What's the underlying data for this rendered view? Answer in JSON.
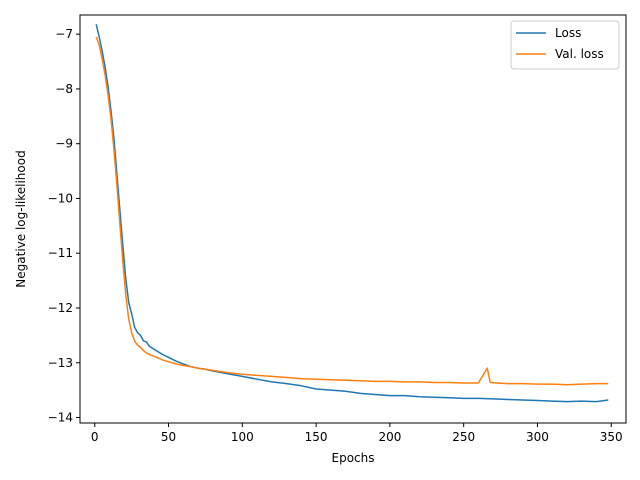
{
  "chart_data": {
    "type": "line",
    "title": "",
    "xlabel": "Epochs",
    "ylabel": "Negative log-likelihood",
    "xlim": [
      -10,
      360
    ],
    "ylim": [
      -14.1,
      -6.65
    ],
    "xticks": [
      0,
      50,
      100,
      150,
      200,
      250,
      300,
      350
    ],
    "yticks": [
      -14,
      -13,
      -12,
      -11,
      -10,
      -9,
      -8,
      -7
    ],
    "xtick_labels": [
      "0",
      "50",
      "100",
      "150",
      "200",
      "250",
      "300",
      "350"
    ],
    "ytick_labels": [
      "−14",
      "−13",
      "−12",
      "−11",
      "−10",
      "−9",
      "−8",
      "−7"
    ],
    "grid": false,
    "legend": "top-right",
    "series": [
      {
        "name": "Loss",
        "color": "#1f77b4",
        "points": [
          [
            1,
            -6.82
          ],
          [
            3,
            -7.05
          ],
          [
            5,
            -7.3
          ],
          [
            7,
            -7.6
          ],
          [
            9,
            -7.95
          ],
          [
            11,
            -8.4
          ],
          [
            13,
            -8.9
          ],
          [
            15,
            -9.55
          ],
          [
            17,
            -10.2
          ],
          [
            19,
            -10.85
          ],
          [
            21,
            -11.45
          ],
          [
            23,
            -11.9
          ],
          [
            25,
            -12.1
          ],
          [
            27,
            -12.35
          ],
          [
            29,
            -12.45
          ],
          [
            31,
            -12.5
          ],
          [
            33,
            -12.6
          ],
          [
            35,
            -12.62
          ],
          [
            37,
            -12.7
          ],
          [
            40,
            -12.75
          ],
          [
            43,
            -12.8
          ],
          [
            46,
            -12.85
          ],
          [
            50,
            -12.9
          ],
          [
            55,
            -12.97
          ],
          [
            60,
            -13.02
          ],
          [
            65,
            -13.07
          ],
          [
            70,
            -13.1
          ],
          [
            75,
            -13.12
          ],
          [
            80,
            -13.15
          ],
          [
            90,
            -13.2
          ],
          [
            100,
            -13.25
          ],
          [
            110,
            -13.3
          ],
          [
            120,
            -13.35
          ],
          [
            130,
            -13.38
          ],
          [
            140,
            -13.42
          ],
          [
            150,
            -13.48
          ],
          [
            160,
            -13.5
          ],
          [
            170,
            -13.52
          ],
          [
            180,
            -13.56
          ],
          [
            190,
            -13.58
          ],
          [
            200,
            -13.6
          ],
          [
            210,
            -13.6
          ],
          [
            220,
            -13.62
          ],
          [
            230,
            -13.63
          ],
          [
            240,
            -13.64
          ],
          [
            250,
            -13.65
          ],
          [
            260,
            -13.65
          ],
          [
            270,
            -13.66
          ],
          [
            280,
            -13.67
          ],
          [
            290,
            -13.68
          ],
          [
            300,
            -13.69
          ],
          [
            310,
            -13.7
          ],
          [
            320,
            -13.71
          ],
          [
            330,
            -13.7
          ],
          [
            340,
            -13.71
          ],
          [
            348,
            -13.68
          ]
        ]
      },
      {
        "name": "Val. loss",
        "color": "#ff7f0e",
        "points": [
          [
            1,
            -7.05
          ],
          [
            3,
            -7.2
          ],
          [
            5,
            -7.45
          ],
          [
            7,
            -7.75
          ],
          [
            9,
            -8.1
          ],
          [
            11,
            -8.55
          ],
          [
            13,
            -9.1
          ],
          [
            15,
            -9.75
          ],
          [
            17,
            -10.45
          ],
          [
            19,
            -11.15
          ],
          [
            21,
            -11.75
          ],
          [
            23,
            -12.2
          ],
          [
            25,
            -12.45
          ],
          [
            27,
            -12.6
          ],
          [
            29,
            -12.68
          ],
          [
            31,
            -12.72
          ],
          [
            33,
            -12.78
          ],
          [
            35,
            -12.82
          ],
          [
            38,
            -12.86
          ],
          [
            42,
            -12.9
          ],
          [
            46,
            -12.95
          ],
          [
            50,
            -12.98
          ],
          [
            55,
            -13.02
          ],
          [
            60,
            -13.05
          ],
          [
            65,
            -13.07
          ],
          [
            70,
            -13.1
          ],
          [
            75,
            -13.12
          ],
          [
            80,
            -13.14
          ],
          [
            90,
            -13.18
          ],
          [
            100,
            -13.21
          ],
          [
            110,
            -13.23
          ],
          [
            120,
            -13.25
          ],
          [
            130,
            -13.27
          ],
          [
            140,
            -13.29
          ],
          [
            150,
            -13.3
          ],
          [
            160,
            -13.31
          ],
          [
            170,
            -13.32
          ],
          [
            180,
            -13.33
          ],
          [
            190,
            -13.34
          ],
          [
            200,
            -13.34
          ],
          [
            210,
            -13.35
          ],
          [
            220,
            -13.35
          ],
          [
            230,
            -13.36
          ],
          [
            240,
            -13.36
          ],
          [
            250,
            -13.37
          ],
          [
            260,
            -13.37
          ],
          [
            266,
            -13.1
          ],
          [
            268,
            -13.36
          ],
          [
            280,
            -13.38
          ],
          [
            290,
            -13.38
          ],
          [
            300,
            -13.39
          ],
          [
            310,
            -13.39
          ],
          [
            320,
            -13.4
          ],
          [
            330,
            -13.39
          ],
          [
            340,
            -13.38
          ],
          [
            348,
            -13.38
          ]
        ]
      }
    ]
  }
}
